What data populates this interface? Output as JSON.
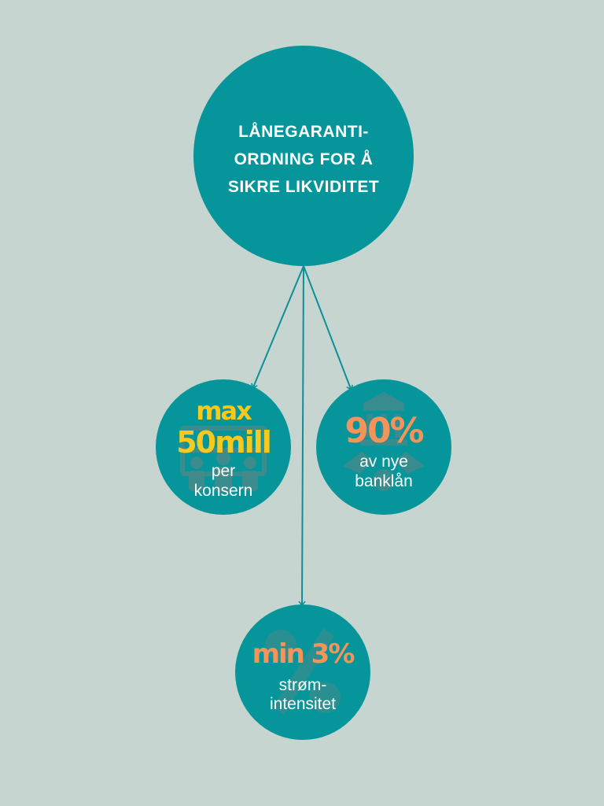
{
  "colors": {
    "background": "#c6d5cf",
    "circle": "#05959a",
    "connector": "#0e8f98",
    "yellow": "#f7c81e",
    "orange": "#f4935a",
    "icon_shade": "#4a8a8a"
  },
  "main_node": {
    "line1": "LÅNEGARANTI-",
    "line2": "ORDNING FOR Å",
    "line3": "SIKRE LIKVIDITET"
  },
  "nodes": [
    {
      "highlight1": "max",
      "highlight2": "50mill",
      "text1": "per",
      "text2": "konsern",
      "icon": "people-group-icon"
    },
    {
      "highlight": "90%",
      "text1": "av nye",
      "text2": "banklån",
      "icon": "bank-building-icon"
    },
    {
      "highlight": "min 3%",
      "text1": "strøm-",
      "text2": "intensitet",
      "icon": "percent-icon"
    }
  ]
}
